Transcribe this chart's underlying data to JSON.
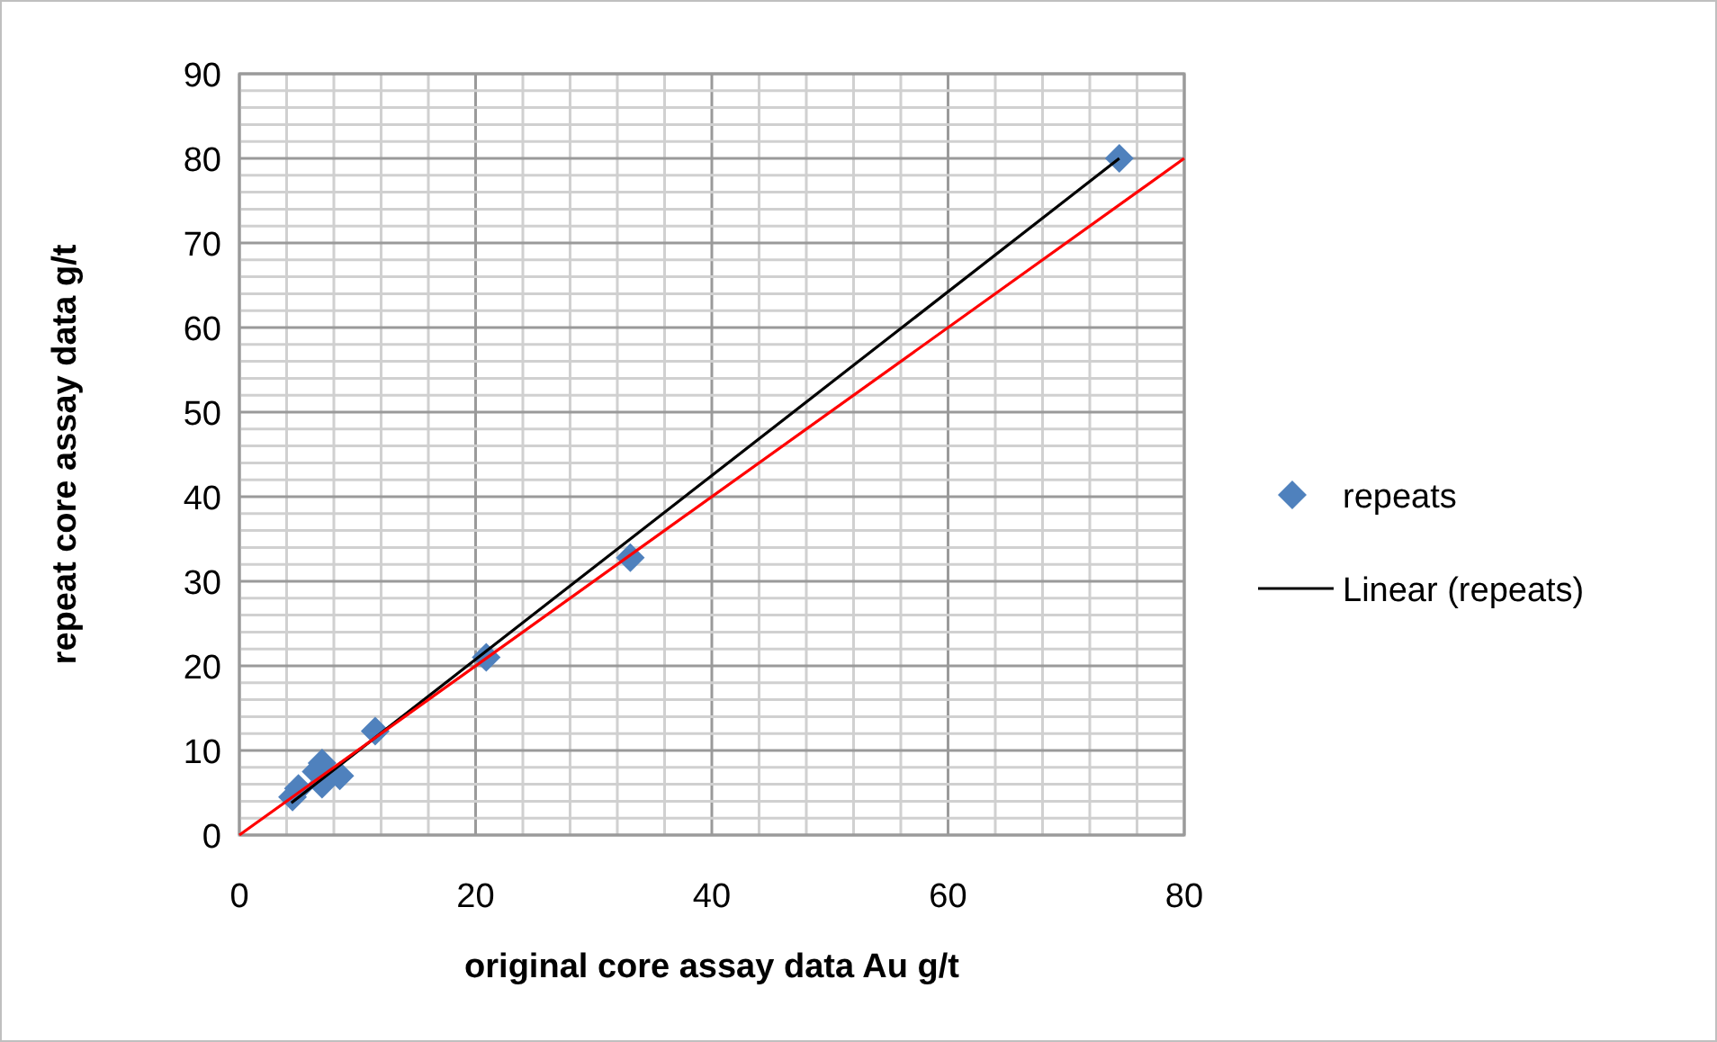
{
  "chart_data": {
    "type": "scatter",
    "xlabel": "original core assay data Au g/t",
    "ylabel": "repeat core assay data g/t",
    "xlim": [
      0,
      80
    ],
    "ylim": [
      0,
      90
    ],
    "xticks": [
      0,
      {
        "value": 4,
        "label": null
      },
      {
        "value": 8,
        "label": null
      },
      {
        "value": 12,
        "label": null
      },
      {
        "value": 16,
        "label": null
      },
      20,
      {
        "value": 24,
        "label": null
      },
      {
        "value": 28,
        "label": null
      },
      {
        "value": 32,
        "label": null
      },
      {
        "value": 36,
        "label": null
      },
      40,
      {
        "value": 44,
        "label": null
      },
      {
        "value": 48,
        "label": null
      },
      {
        "value": 52,
        "label": null
      },
      {
        "value": 56,
        "label": null
      },
      60,
      {
        "value": 64,
        "label": null
      },
      {
        "value": 68,
        "label": null
      },
      {
        "value": 72,
        "label": null
      },
      {
        "value": 76,
        "label": null
      },
      80
    ],
    "yticks": [
      0,
      {
        "value": 2,
        "label": null
      },
      {
        "value": 4,
        "label": null
      },
      {
        "value": 6,
        "label": null
      },
      {
        "value": 8,
        "label": null
      },
      10,
      {
        "value": 12,
        "label": null
      },
      {
        "value": 14,
        "label": null
      },
      {
        "value": 16,
        "label": null
      },
      {
        "value": 18,
        "label": null
      },
      20,
      {
        "value": 22,
        "label": null
      },
      {
        "value": 24,
        "label": null
      },
      {
        "value": 26,
        "label": null
      },
      {
        "value": 28,
        "label": null
      },
      30,
      {
        "value": 32,
        "label": null
      },
      {
        "value": 34,
        "label": null
      },
      {
        "value": 36,
        "label": null
      },
      {
        "value": 38,
        "label": null
      },
      40,
      {
        "value": 42,
        "label": null
      },
      {
        "value": 44,
        "label": null
      },
      {
        "value": 46,
        "label": null
      },
      {
        "value": 48,
        "label": null
      },
      50,
      {
        "value": 52,
        "label": null
      },
      {
        "value": 54,
        "label": null
      },
      {
        "value": 56,
        "label": null
      },
      {
        "value": 58,
        "label": null
      },
      60,
      {
        "value": 62,
        "label": null
      },
      {
        "value": 64,
        "label": null
      },
      {
        "value": 66,
        "label": null
      },
      {
        "value": 68,
        "label": null
      },
      70,
      {
        "value": 72,
        "label": null
      },
      {
        "value": 74,
        "label": null
      },
      {
        "value": 76,
        "label": null
      },
      {
        "value": 78,
        "label": null
      },
      80,
      {
        "value": 82,
        "label": null
      },
      {
        "value": 84,
        "label": null
      },
      {
        "value": 86,
        "label": null
      },
      {
        "value": 88,
        "label": null
      },
      90
    ],
    "grid": true,
    "legend": "right",
    "series": [
      {
        "name": "repeats",
        "marker": "diamond",
        "color": "#4f81bd",
        "x": [
          4.5,
          5,
          6.5,
          7,
          7,
          8.5,
          11.5,
          20.9,
          33.1,
          74.5
        ],
        "values": [
          4.5,
          5.5,
          7.5,
          8.5,
          6,
          7,
          12.3,
          21,
          32.8,
          80
        ]
      },
      {
        "name": "Linear (repeats)",
        "type": "line",
        "marker": "none",
        "color": "#000000",
        "x": [
          4.4,
          74.5
        ],
        "values": [
          3.8,
          80
        ]
      },
      {
        "type": "line",
        "marker": "none",
        "color": "#ff0000",
        "x": [
          0,
          80
        ],
        "values": [
          0,
          80
        ]
      }
    ]
  }
}
